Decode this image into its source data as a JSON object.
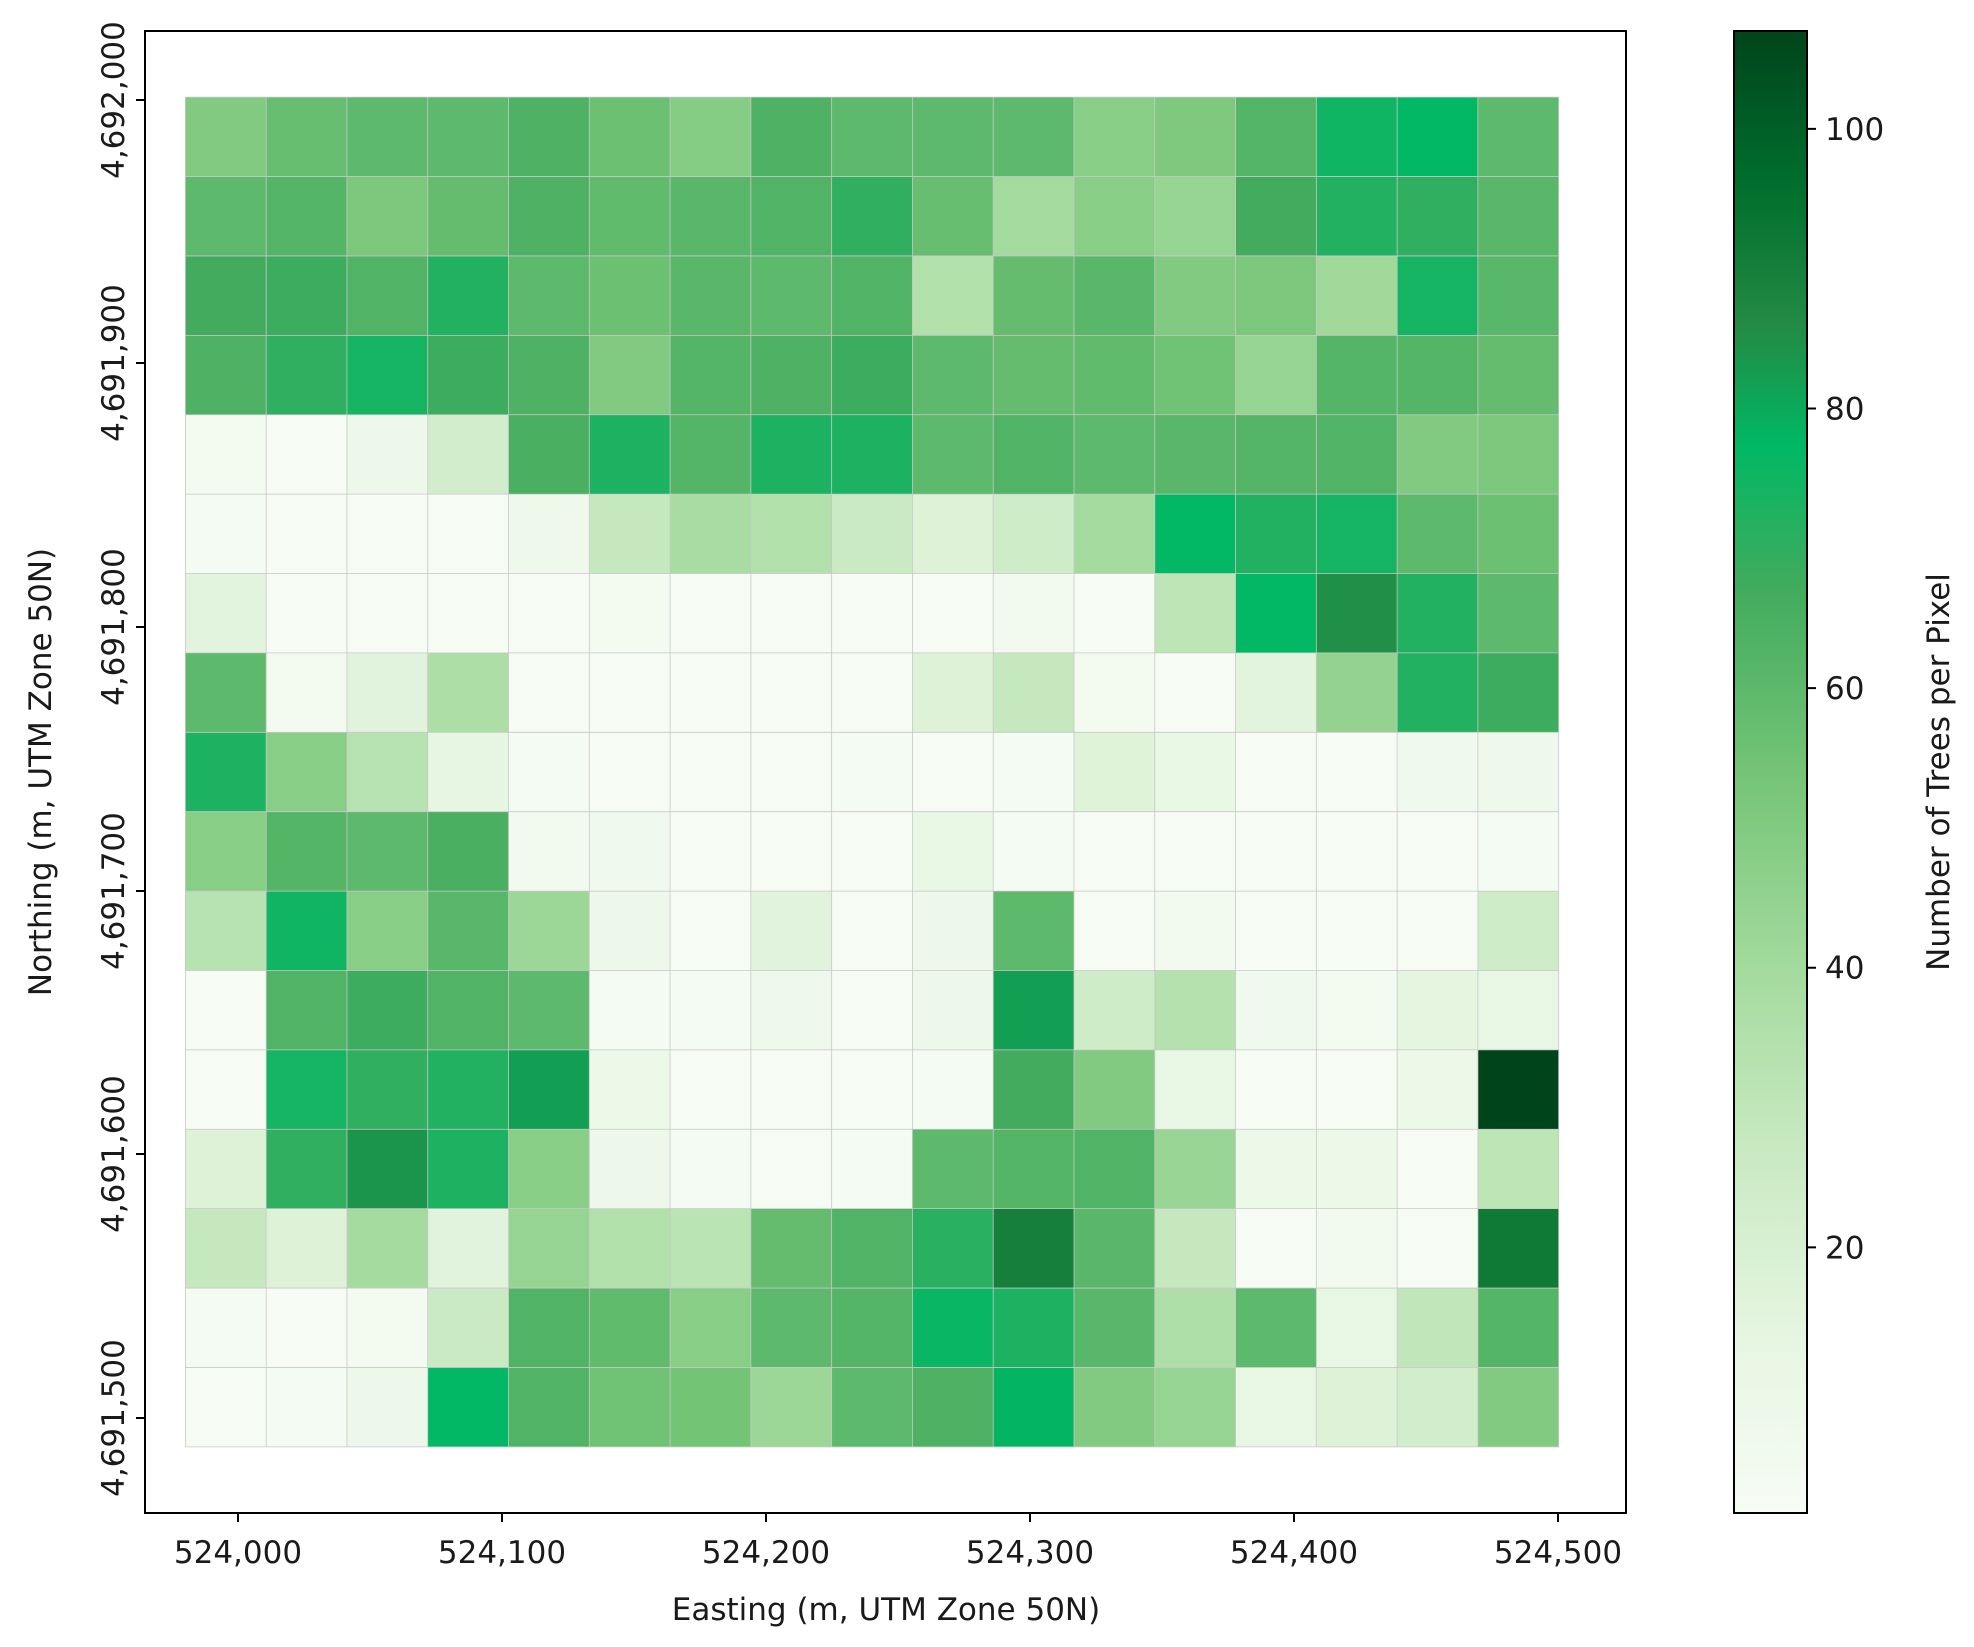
{
  "chart_data": {
    "type": "heatmap",
    "title": "",
    "xlabel": "Easting (m, UTM Zone 50N)",
    "ylabel": "Northing (m, UTM Zone 50N)",
    "colorbar_label": "Number of Trees per Pixel",
    "x_ticks": [
      "524,000",
      "524,100",
      "524,200",
      "524,300",
      "524,400",
      "524,500"
    ],
    "x_tick_values": [
      524000,
      524100,
      524200,
      524300,
      524400,
      524500
    ],
    "y_ticks": [
      "4,691,500",
      "4,691,600",
      "4,691,700",
      "4,691,800",
      "4,691,900",
      "4,692,000"
    ],
    "y_tick_values": [
      4691500,
      4691600,
      4691700,
      4691800,
      4691900,
      4692000
    ],
    "colorbar_ticks": [
      "20",
      "40",
      "60",
      "80",
      "100"
    ],
    "colorbar_tick_values": [
      20,
      40,
      60,
      80,
      100
    ],
    "xlim": [
      523975,
      524525
    ],
    "ylim": [
      4691465,
      4692025
    ],
    "grid_x_range": [
      523990,
      524500
    ],
    "grid_y_range": [
      4691490,
      4692000
    ],
    "vmin": 1,
    "vmax": 107,
    "colormap": [
      "#f7fcf5",
      "#e5f5e0",
      "#c7e9c0",
      "#a1d99b",
      "#74c476",
      "#41ab5d",
      "#00b864",
      "#238b45",
      "#006d2c",
      "#00441b"
    ],
    "grid_line_color": "#c8c8c8",
    "rows_top_to_bottom": [
      [
        50,
        57,
        60,
        60,
        64,
        56,
        49,
        64,
        60,
        60,
        60,
        48,
        51,
        62,
        75,
        77,
        60
      ],
      [
        60,
        62,
        52,
        58,
        64,
        59,
        61,
        63,
        70,
        57,
        40,
        48,
        44,
        67,
        72,
        70,
        61
      ],
      [
        67,
        68,
        63,
        72,
        60,
        56,
        61,
        60,
        63,
        35,
        58,
        61,
        50,
        52,
        41,
        74,
        61
      ],
      [
        64,
        70,
        74,
        68,
        64,
        50,
        62,
        64,
        68,
        60,
        58,
        59,
        55,
        44,
        62,
        62,
        58
      ],
      [
        4,
        2,
        8,
        23,
        65,
        73,
        62,
        73,
        73,
        60,
        63,
        60,
        61,
        62,
        63,
        50,
        52
      ],
      [
        3,
        2,
        2,
        2,
        7,
        28,
        38,
        35,
        26,
        18,
        24,
        40,
        77,
        72,
        74,
        60,
        56
      ],
      [
        15,
        2,
        2,
        2,
        2,
        4,
        2,
        2,
        2,
        2,
        5,
        2,
        31,
        77,
        85,
        72,
        60
      ],
      [
        60,
        4,
        16,
        37,
        2,
        2,
        2,
        2,
        2,
        18,
        28,
        4,
        2,
        15,
        45,
        72,
        68
      ],
      [
        73,
        48,
        33,
        13,
        3,
        2,
        2,
        2,
        3,
        2,
        3,
        17,
        11,
        2,
        2,
        6,
        7
      ],
      [
        48,
        62,
        60,
        65,
        5,
        6,
        2,
        2,
        2,
        11,
        3,
        2,
        2,
        2,
        2,
        2,
        3
      ],
      [
        33,
        75,
        48,
        61,
        42,
        8,
        2,
        16,
        2,
        8,
        60,
        2,
        5,
        2,
        2,
        2,
        25
      ],
      [
        2,
        63,
        68,
        63,
        60,
        3,
        3,
        7,
        2,
        8,
        82,
        24,
        34,
        6,
        4,
        14,
        12
      ],
      [
        2,
        74,
        70,
        72,
        82,
        9,
        2,
        2,
        2,
        3,
        67,
        50,
        12,
        2,
        2,
        9,
        107
      ],
      [
        18,
        70,
        84,
        73,
        48,
        8,
        3,
        2,
        3,
        60,
        62,
        63,
        43,
        9,
        9,
        2,
        31
      ],
      [
        28,
        18,
        39,
        16,
        44,
        35,
        32,
        58,
        63,
        71,
        90,
        61,
        28,
        2,
        5,
        2,
        92
      ],
      [
        3,
        2,
        4,
        26,
        63,
        59,
        48,
        60,
        62,
        76,
        73,
        61,
        36,
        60,
        12,
        30,
        62
      ],
      [
        2,
        3,
        8,
        77,
        63,
        55,
        54,
        42,
        60,
        64,
        78,
        50,
        44,
        12,
        18,
        23,
        50
      ]
    ]
  }
}
